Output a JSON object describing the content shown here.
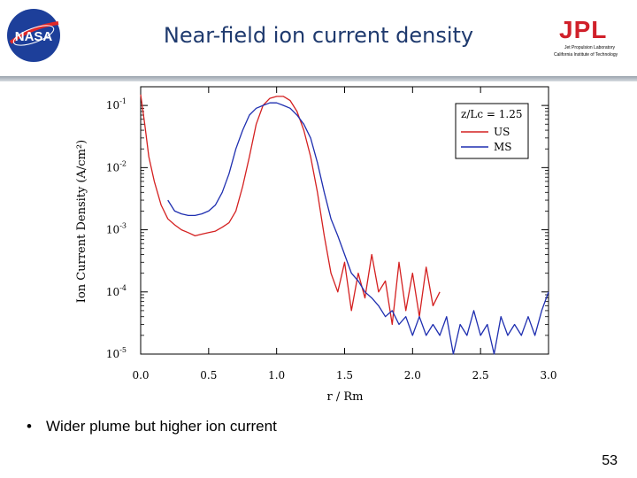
{
  "header": {
    "title": "Near-field ion current density",
    "nasa_logo_text": "NASA",
    "jpl_logo": {
      "letters": "JPL",
      "line1": "Jet Propulsion Laboratory",
      "line2": "California Institute of Technology"
    }
  },
  "chart_data": {
    "type": "line",
    "xlabel": "r / Rm",
    "ylabel": "Ion Current Density (A/cm²)",
    "x_ticks": [
      "0.0",
      "0.5",
      "1.0",
      "1.5",
      "2.0",
      "2.5",
      "3.0"
    ],
    "y_ticks": [
      "10-1",
      "10-2",
      "10-3",
      "10-4",
      "10-5"
    ],
    "xlim": [
      0,
      3
    ],
    "ylim": [
      1e-05,
      0.2
    ],
    "y_scale": "log",
    "legend_title": "z/Lc = 1.25",
    "legend_position": "top-right",
    "series": [
      {
        "name": "US",
        "color": "#d42020",
        "x": [
          0.0,
          0.03,
          0.06,
          0.1,
          0.15,
          0.2,
          0.25,
          0.3,
          0.35,
          0.4,
          0.45,
          0.5,
          0.55,
          0.6,
          0.65,
          0.7,
          0.75,
          0.8,
          0.85,
          0.9,
          0.95,
          1.0,
          1.05,
          1.1,
          1.15,
          1.2,
          1.25,
          1.3,
          1.35,
          1.4,
          1.45,
          1.5,
          1.55,
          1.6,
          1.65,
          1.7,
          1.75,
          1.8,
          1.85,
          1.9,
          1.95,
          2.0,
          2.05,
          2.1,
          2.15,
          2.2
        ],
        "y": [
          0.15,
          0.05,
          0.015,
          0.006,
          0.0025,
          0.0015,
          0.0012,
          0.001,
          0.0009,
          0.0008,
          0.00085,
          0.0009,
          0.00095,
          0.0011,
          0.0013,
          0.002,
          0.005,
          0.015,
          0.05,
          0.1,
          0.13,
          0.14,
          0.14,
          0.12,
          0.08,
          0.04,
          0.015,
          0.004,
          0.0008,
          0.0002,
          0.0001,
          0.0003,
          5e-05,
          0.0002,
          8e-05,
          0.0004,
          0.0001,
          0.00015,
          3e-05,
          0.0003,
          5e-05,
          0.0002,
          4e-05,
          0.00025,
          6e-05,
          0.0001
        ]
      },
      {
        "name": "MS",
        "color": "#1f2fb0",
        "x": [
          0.2,
          0.25,
          0.3,
          0.35,
          0.4,
          0.45,
          0.5,
          0.55,
          0.6,
          0.65,
          0.7,
          0.75,
          0.8,
          0.85,
          0.9,
          0.95,
          1.0,
          1.05,
          1.1,
          1.15,
          1.2,
          1.25,
          1.3,
          1.35,
          1.4,
          1.45,
          1.5,
          1.55,
          1.6,
          1.65,
          1.7,
          1.75,
          1.8,
          1.85,
          1.9,
          1.95,
          2.0,
          2.05,
          2.1,
          2.15,
          2.2,
          2.25,
          2.3,
          2.35,
          2.4,
          2.45,
          2.5,
          2.55,
          2.6,
          2.65,
          2.7,
          2.75,
          2.8,
          2.85,
          2.9,
          2.95,
          3.0
        ],
        "y": [
          0.003,
          0.002,
          0.0018,
          0.0017,
          0.0017,
          0.0018,
          0.002,
          0.0025,
          0.004,
          0.008,
          0.02,
          0.04,
          0.07,
          0.09,
          0.1,
          0.11,
          0.11,
          0.1,
          0.09,
          0.07,
          0.05,
          0.03,
          0.012,
          0.004,
          0.0015,
          0.0008,
          0.0004,
          0.0002,
          0.00015,
          0.0001,
          8e-05,
          6e-05,
          4e-05,
          5e-05,
          3e-05,
          4e-05,
          2e-05,
          4e-05,
          2e-05,
          3e-05,
          2e-05,
          4e-05,
          1e-05,
          3e-05,
          2e-05,
          5e-05,
          2e-05,
          3e-05,
          1e-05,
          4e-05,
          2e-05,
          3e-05,
          2e-05,
          4e-05,
          2e-05,
          5e-05,
          0.0001
        ]
      }
    ]
  },
  "body": {
    "bullet_text": "Wider plume but higher ion current",
    "bullet_symbol": "•"
  },
  "footer": {
    "page_number": "53"
  }
}
